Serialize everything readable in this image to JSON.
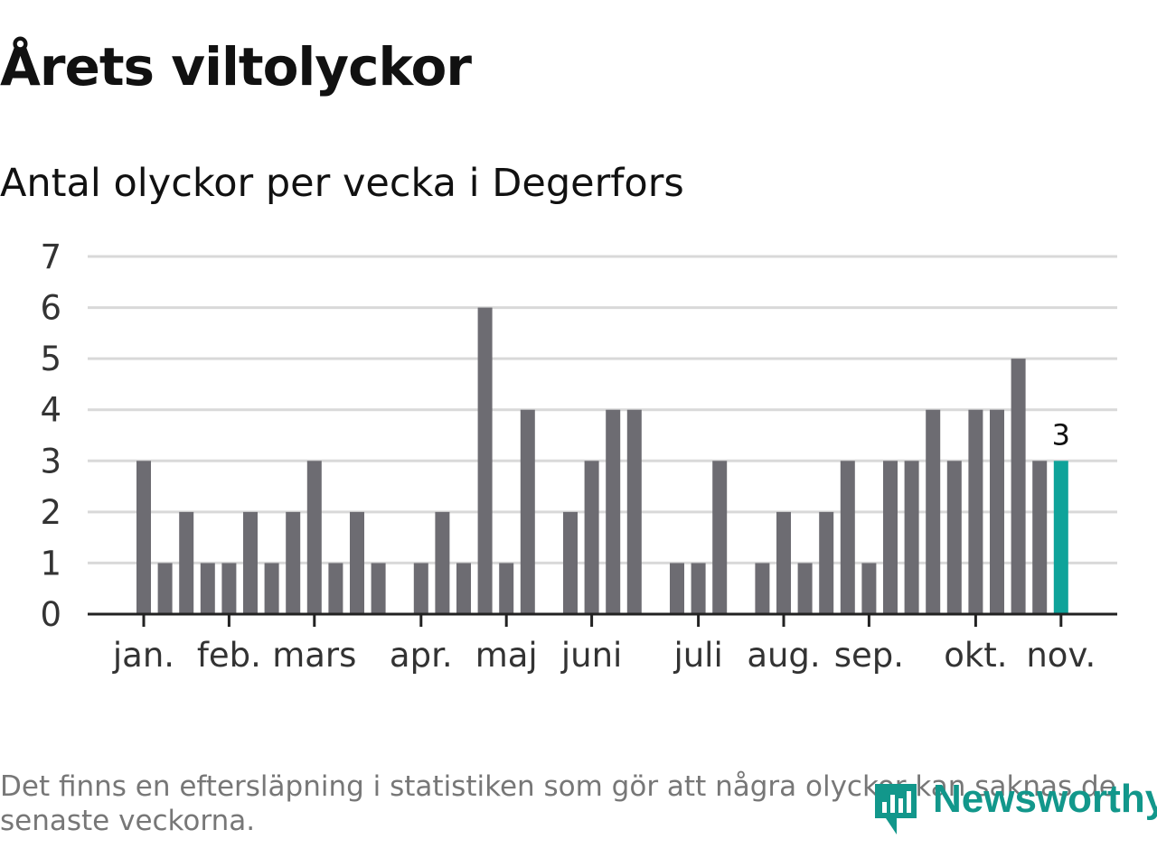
{
  "title": "Årets viltolyckor",
  "subtitle": "Antal olyckor per vecka i Degerfors",
  "footnote": "Det finns en eftersläpning i statistiken som gör att några olyckor kan saknas de senaste veckorna.",
  "brand": "Newsworthy",
  "colors": {
    "bar": "#6d6c72",
    "highlight": "#0fa39a",
    "grid": "#d9d9d9",
    "axis": "#222222",
    "logo": "#12978b"
  },
  "chart_data": {
    "type": "bar",
    "title": "Antal olyckor per vecka i Degerfors",
    "xlabel": "",
    "ylabel": "",
    "ylim": [
      0,
      7
    ],
    "yticks": [
      "0",
      "1",
      "2",
      "3",
      "4",
      "5",
      "6",
      "7"
    ],
    "grid": true,
    "weeks": [
      1,
      2,
      3,
      4,
      5,
      6,
      7,
      8,
      9,
      10,
      11,
      12,
      13,
      14,
      15,
      16,
      17,
      18,
      19,
      20,
      21,
      22,
      23,
      24,
      25,
      26,
      27,
      28,
      29,
      30,
      31,
      32,
      33,
      34,
      35,
      36,
      37,
      38,
      39,
      40,
      41,
      42,
      43,
      44,
      45,
      46,
      47
    ],
    "values": [
      0,
      0,
      3,
      1,
      2,
      1,
      1,
      2,
      1,
      2,
      3,
      1,
      2,
      1,
      0,
      1,
      2,
      1,
      6,
      1,
      4,
      0,
      2,
      3,
      4,
      4,
      0,
      1,
      1,
      3,
      0,
      1,
      2,
      1,
      2,
      3,
      1,
      3,
      3,
      4,
      3,
      4,
      4,
      5,
      3,
      3,
      0
    ],
    "highlight_index": 45,
    "highlight_label": "3",
    "month_labels": [
      {
        "label": "jan.",
        "week": 3
      },
      {
        "label": "feb.",
        "week": 7
      },
      {
        "label": "mars",
        "week": 11
      },
      {
        "label": "apr.",
        "week": 16
      },
      {
        "label": "maj",
        "week": 20
      },
      {
        "label": "juni",
        "week": 24
      },
      {
        "label": "juli",
        "week": 29
      },
      {
        "label": "aug.",
        "week": 33
      },
      {
        "label": "sep.",
        "week": 37
      },
      {
        "label": "okt.",
        "week": 42
      },
      {
        "label": "nov.",
        "week": 46
      }
    ]
  }
}
